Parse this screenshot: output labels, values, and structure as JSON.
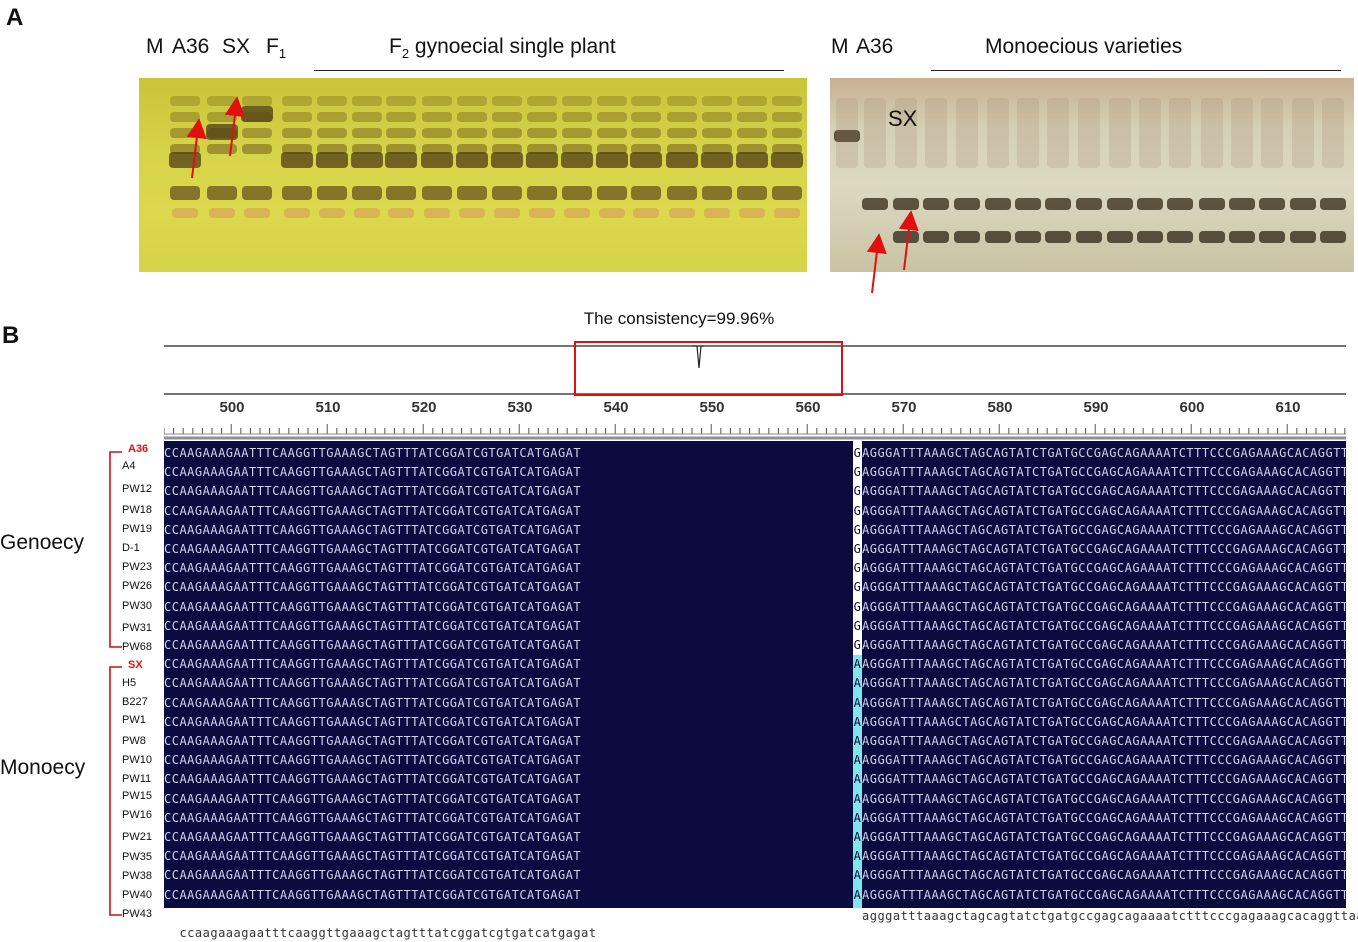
{
  "panel_a": {
    "letter": "A",
    "left_gel": {
      "lane_labels": {
        "m": "M",
        "a36": "A36",
        "sx": "SX",
        "f1_base": "F",
        "f1_sub": "1"
      },
      "group_label_base": "F",
      "group_label_sub": "2",
      "group_label_rest": " gynoecial single plant"
    },
    "right_gel": {
      "lane_labels": {
        "m": "M",
        "a36": "A36",
        "sx": "SX"
      },
      "group_label": "Monoecious  varieties"
    },
    "arrow_color": "#e01010"
  },
  "panel_b": {
    "letter": "B",
    "consistency": "The consistency=99.96%",
    "ruler": [
      "500",
      "510",
      "520",
      "530",
      "540",
      "550",
      "560",
      "570",
      "580",
      "590",
      "600",
      "610"
    ],
    "seq_left": "CCAAGAAAGAATTTCAAGGTTGAAAGCTAGTTTATCGGATCGTGATCATGAGAT",
    "seq_right": "AGGGATTTAAAGCTAGCAGTATCTGATGCCGAGCAGAAAATCTTTCCCGAGAAAGCACAGGTTAAGG",
    "consensus_left": "ccaagaaagaatttcaaggttgaaagctagtttatcggatcgtgatcatgagat",
    "consensus_right": "agggatttaaagctagcagtatctgatgccgagcagaaaatctttcccgagaaagcacaggttaagg",
    "genoecy": {
      "label": "Genoecy",
      "snp": "G",
      "names": [
        "A36",
        "A4",
        "PW12",
        "PW18",
        "PW19",
        "D-1",
        "PW23",
        "PW26",
        "PW30",
        "PW31",
        "PW68"
      ]
    },
    "monoecy": {
      "label": "Monoecy",
      "snp": "A",
      "names": [
        "SX",
        "H5",
        "B227",
        "PW1",
        "PW8",
        "PW10",
        "PW11",
        "PW15",
        "PW16",
        "PW21",
        "PW35",
        "PW38",
        "PW40",
        "PW43"
      ]
    },
    "colors": {
      "alignment_bg": "#0b0b3f",
      "snp_genoecy_bg": "#ffffff",
      "snp_monoecy_bg": "#7fe7ec",
      "highlight_box": "#e01010",
      "reference_name": "#d11111"
    }
  }
}
